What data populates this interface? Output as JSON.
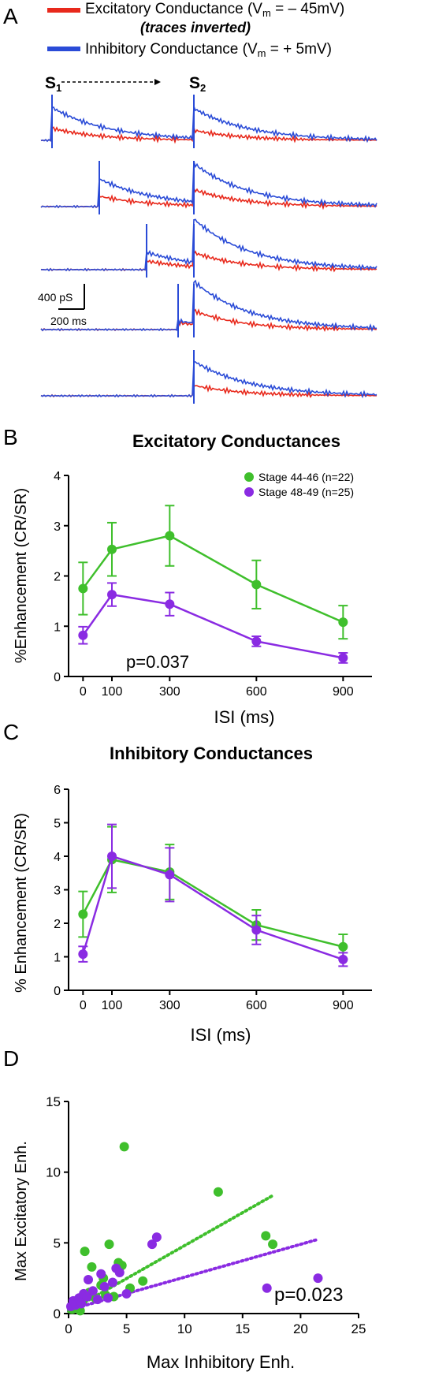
{
  "colors": {
    "green": "#3fbf2c",
    "purple": "#8a2be2",
    "red": "#e8291c",
    "blue": "#2a4bd7",
    "axis": "#000000"
  },
  "panelA": {
    "letter": "A",
    "legend": {
      "exc_pre": "Excitatory Conductance (V",
      "exc_sub": "m",
      "exc_post": " =  – 45mV)",
      "exc_note": "(traces inverted)",
      "inh_pre": "Inhibitory Conductance (V",
      "inh_sub": "m",
      "inh_post": " =  + 5mV)"
    },
    "s1": "S",
    "s1_sub": "1",
    "s2": "S",
    "s2_sub": "2",
    "scale_y": "400 pS",
    "scale_x": "200 ms",
    "traces": [
      {
        "isi_ms": 900,
        "exc_peak1": 0.7,
        "exc_peak2": 0.55,
        "inh_peak1": 1.9,
        "inh_peak2": 1.7
      },
      {
        "isi_ms": 600,
        "exc_peak1": 0.6,
        "exc_peak2": 0.9,
        "inh_peak1": 1.6,
        "inh_peak2": 2.2
      },
      {
        "isi_ms": 300,
        "exc_peak1": 0.5,
        "exc_peak2": 0.8,
        "inh_peak1": 1.0,
        "inh_peak2": 2.5
      },
      {
        "isi_ms": 100,
        "exc_peak1": 0.4,
        "exc_peak2": 0.8,
        "inh_peak1": 0.5,
        "inh_peak2": 2.4
      },
      {
        "isi_ms": 0,
        "exc_peak1": 0.0,
        "exc_peak2": 0.6,
        "inh_peak1": 0.0,
        "inh_peak2": 2.0
      }
    ]
  },
  "chart_data": [
    {
      "panel": "B",
      "type": "line",
      "title": "Excitatory Conductances",
      "xlabel": "ISI (ms)",
      "ylabel": "%Enhancement (CR/SR)",
      "x": [
        0,
        100,
        300,
        600,
        900
      ],
      "xticks": [
        "0",
        "100",
        "300",
        "600",
        "900"
      ],
      "xlim": [
        -50,
        1000
      ],
      "ylim": [
        0,
        4
      ],
      "yticks": [
        "0",
        "1",
        "2",
        "3",
        "4"
      ],
      "annotation": "p=0.037",
      "legend_position": "top-right",
      "series": [
        {
          "name": "Stage 44-46 (n=22)",
          "color": "#3fbf2c",
          "values": [
            1.75,
            2.53,
            2.8,
            1.83,
            1.08
          ],
          "err": [
            0.52,
            0.53,
            0.6,
            0.48,
            0.33
          ]
        },
        {
          "name": "Stage 48-49 (n=25)",
          "color": "#8a2be2",
          "values": [
            0.82,
            1.63,
            1.44,
            0.7,
            0.37
          ],
          "err": [
            0.17,
            0.23,
            0.23,
            0.1,
            0.1
          ]
        }
      ]
    },
    {
      "panel": "C",
      "type": "line",
      "title": "Inhibitory Conductances",
      "xlabel": "ISI (ms)",
      "ylabel": "% Enhancement (CR/SR)",
      "x": [
        0,
        100,
        300,
        600,
        900
      ],
      "xticks": [
        "0",
        "100",
        "300",
        "600",
        "900"
      ],
      "xlim": [
        -50,
        1000
      ],
      "ylim": [
        0,
        6
      ],
      "yticks": [
        "0",
        "1",
        "2",
        "3",
        "4",
        "5",
        "6"
      ],
      "series": [
        {
          "name": "",
          "color": "#3fbf2c",
          "values": [
            2.27,
            3.9,
            3.53,
            1.95,
            1.3
          ],
          "err": [
            0.68,
            0.98,
            0.82,
            0.45,
            0.37
          ]
        },
        {
          "name": "",
          "color": "#8a2be2",
          "values": [
            1.08,
            4.0,
            3.45,
            1.8,
            0.92
          ],
          "err": [
            0.23,
            0.95,
            0.8,
            0.43,
            0.2
          ]
        }
      ]
    },
    {
      "panel": "D",
      "type": "scatter",
      "xlabel": "Max Inhibitory Enh.",
      "ylabel": "Max Excitatory Enh.",
      "xlim": [
        0,
        25
      ],
      "ylim": [
        0,
        15
      ],
      "xticks": [
        "0",
        "5",
        "10",
        "15",
        "20",
        "25"
      ],
      "yticks": [
        "0",
        "5",
        "10",
        "15"
      ],
      "annotation": "p=0.023",
      "series": [
        {
          "name": "",
          "color": "#3fbf2c",
          "points": [
            [
              0.3,
              0.3
            ],
            [
              0.5,
              0.5
            ],
            [
              0.6,
              0.8
            ],
            [
              0.8,
              0.6
            ],
            [
              0.9,
              1.0
            ],
            [
              1.0,
              0.2
            ],
            [
              1.2,
              0.9
            ],
            [
              1.4,
              4.4
            ],
            [
              1.8,
              1.5
            ],
            [
              2.0,
              3.3
            ],
            [
              2.3,
              1.1
            ],
            [
              2.8,
              2.0
            ],
            [
              3.0,
              2.5
            ],
            [
              3.2,
              1.3
            ],
            [
              3.5,
              4.9
            ],
            [
              3.9,
              1.2
            ],
            [
              4.3,
              3.6
            ],
            [
              4.6,
              3.4
            ],
            [
              4.8,
              11.8
            ],
            [
              5.3,
              1.8
            ],
            [
              6.4,
              2.3
            ],
            [
              12.9,
              8.6
            ],
            [
              17.0,
              5.5
            ],
            [
              17.6,
              4.9
            ]
          ],
          "trend": [
            [
              0.0,
              0.15
            ],
            [
              17.5,
              8.3
            ]
          ]
        },
        {
          "name": "",
          "color": "#8a2be2",
          "points": [
            [
              0.2,
              0.5
            ],
            [
              0.4,
              0.9
            ],
            [
              0.6,
              0.6
            ],
            [
              0.9,
              1.1
            ],
            [
              1.1,
              0.7
            ],
            [
              1.3,
              1.4
            ],
            [
              1.6,
              1.2
            ],
            [
              1.7,
              2.4
            ],
            [
              2.1,
              1.6
            ],
            [
              2.5,
              1.0
            ],
            [
              2.8,
              2.8
            ],
            [
              3.1,
              1.9
            ],
            [
              3.4,
              1.1
            ],
            [
              3.8,
              2.2
            ],
            [
              4.1,
              3.2
            ],
            [
              4.4,
              2.9
            ],
            [
              5.0,
              1.4
            ],
            [
              7.2,
              4.9
            ],
            [
              7.6,
              5.4
            ],
            [
              17.1,
              1.8
            ],
            [
              21.5,
              2.5
            ]
          ],
          "trend": [
            [
              0.0,
              0.25
            ],
            [
              21.3,
              5.2
            ]
          ]
        }
      ]
    }
  ]
}
